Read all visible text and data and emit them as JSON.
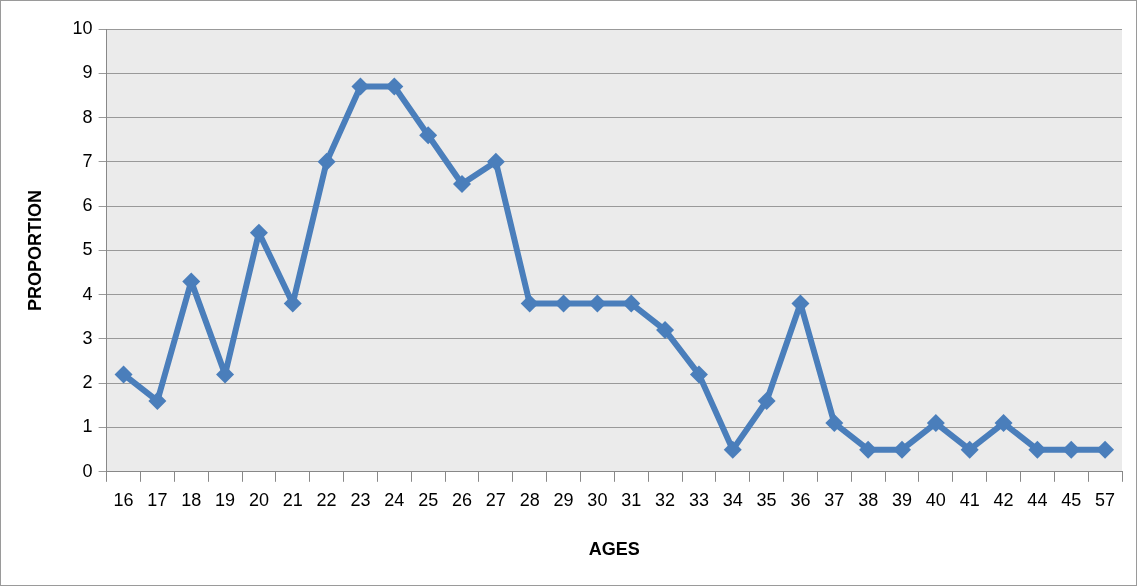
{
  "chart_data": {
    "type": "line",
    "xlabel": "AGES",
    "ylabel": "PROPORTION",
    "categories": [
      "16",
      "17",
      "18",
      "19",
      "20",
      "21",
      "22",
      "23",
      "24",
      "25",
      "26",
      "27",
      "28",
      "29",
      "30",
      "31",
      "32",
      "33",
      "34",
      "35",
      "36",
      "37",
      "38",
      "39",
      "40",
      "41",
      "42",
      "44",
      "45",
      "57"
    ],
    "series": [
      {
        "color": "#4a7ebb",
        "values": [
          2.2,
          1.6,
          4.3,
          2.2,
          5.4,
          3.8,
          7.0,
          8.7,
          8.7,
          7.6,
          6.5,
          7.0,
          3.8,
          3.8,
          3.8,
          3.8,
          3.2,
          2.2,
          0.5,
          1.6,
          3.8,
          1.1,
          0.5,
          0.5,
          1.1,
          0.5,
          1.1,
          0.5,
          0.5,
          0.5
        ]
      }
    ],
    "ylim": [
      0,
      10
    ],
    "yticks": [
      0,
      1,
      2,
      3,
      4,
      5,
      6,
      7,
      8,
      9,
      10
    ],
    "grid": "y",
    "legend": false,
    "marker": "diamond",
    "line_style": "solid"
  }
}
